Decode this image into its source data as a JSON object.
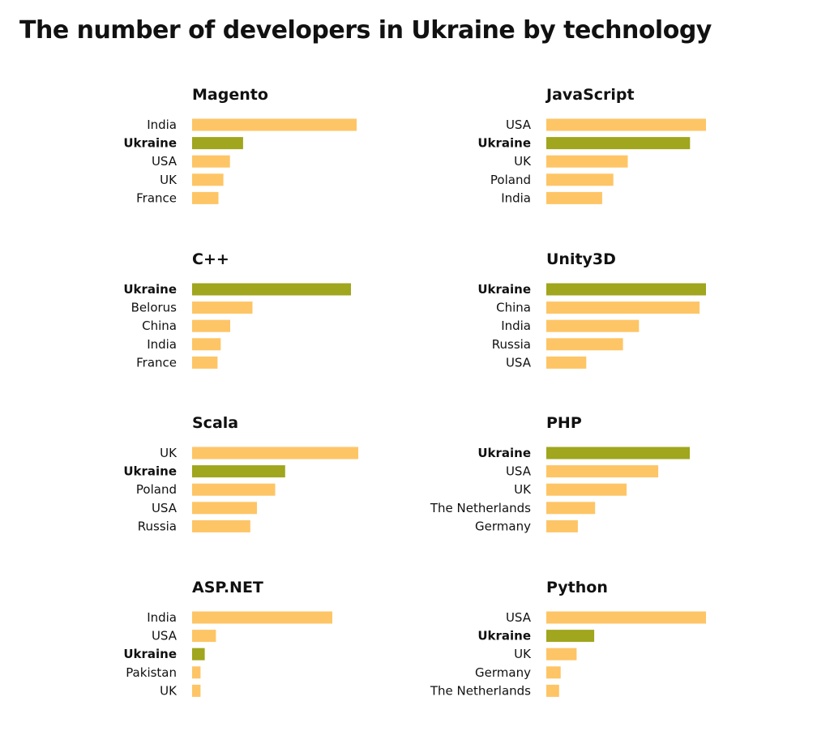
{
  "title": "The number of developers in Ukraine by technology",
  "colors": {
    "highlight": "#a0a61d",
    "default": "#fec566"
  },
  "chart_data": [
    {
      "type": "bar",
      "title": "Magento",
      "categories": [
        "India",
        "Ukraine",
        "USA",
        "UK",
        "France"
      ],
      "values": [
        100,
        31,
        23,
        19,
        16
      ],
      "highlight": "Ukraine"
    },
    {
      "type": "bar",
      "title": "JavaScript",
      "categories": [
        "USA",
        "Ukraine",
        "UK",
        "Poland",
        "India"
      ],
      "values": [
        100,
        90,
        51,
        42,
        35
      ],
      "highlight": "Ukraine"
    },
    {
      "type": "bar",
      "title": "C++",
      "categories": [
        "Ukraine",
        "Belorus",
        "China",
        "India",
        "France"
      ],
      "values": [
        100,
        38,
        24,
        18,
        16
      ],
      "highlight": "Ukraine"
    },
    {
      "type": "bar",
      "title": "Unity3D",
      "categories": [
        "Ukraine",
        "China",
        "India",
        "Russia",
        "USA"
      ],
      "values": [
        100,
        96,
        58,
        48,
        25
      ],
      "highlight": "Ukraine"
    },
    {
      "type": "bar",
      "title": "Scala",
      "categories": [
        "UK",
        "Ukraine",
        "Poland",
        "USA",
        "Russia"
      ],
      "values": [
        100,
        56,
        50,
        39,
        35
      ],
      "highlight": "Ukraine"
    },
    {
      "type": "bar",
      "title": "PHP",
      "categories": [
        "Ukraine",
        "USA",
        "UK",
        "The Netherlands",
        "Germany"
      ],
      "values": [
        100,
        78,
        56,
        34,
        22
      ],
      "highlight": "Ukraine"
    },
    {
      "type": "bar",
      "title": "ASP.NET",
      "categories": [
        "India",
        "USA",
        "Ukraine",
        "Pakistan",
        "UK"
      ],
      "values": [
        100,
        17,
        9,
        6,
        6
      ],
      "highlight": "Ukraine"
    },
    {
      "type": "bar",
      "title": "Python",
      "categories": [
        "USA",
        "Ukraine",
        "UK",
        "Germany",
        "The Netherlands"
      ],
      "values": [
        100,
        30,
        19,
        9,
        8
      ],
      "highlight": "Ukraine"
    }
  ]
}
